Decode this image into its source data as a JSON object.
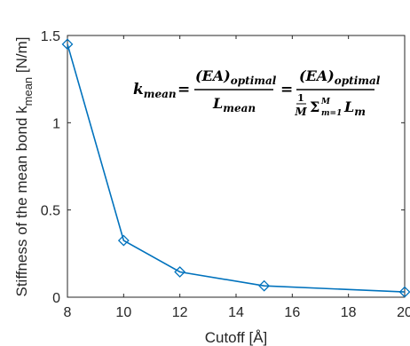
{
  "chart_data": {
    "type": "line",
    "x": [
      8,
      10,
      12,
      15,
      20
    ],
    "series": [
      {
        "values": [
          1.45,
          0.325,
          0.145,
          0.065,
          0.03
        ],
        "color": "#0072BD",
        "marker": "diamond"
      }
    ],
    "xlabel": "Cutoff [Å]",
    "ylabel_parts": {
      "main": "Stiffness of the mean bond k",
      "sub": "mean",
      "unit": " [N/m]"
    },
    "xlim": [
      8,
      20
    ],
    "ylim": [
      0,
      1.5
    ],
    "xticks": [
      8,
      10,
      12,
      14,
      16,
      18,
      20
    ],
    "yticks": [
      0,
      0.5,
      1,
      1.5
    ],
    "xtick_labels": [
      "8",
      "10",
      "12",
      "14",
      "16",
      "18",
      "20"
    ],
    "ytick_labels": [
      "0",
      "0.5",
      "1",
      "1.5"
    ],
    "grid": false,
    "annotation": {
      "lhs": "k",
      "lhs_sub": "mean",
      "eq": "=",
      "frac1_num": "(EA)",
      "frac1_num_sub": "optimal",
      "frac1_den": "L",
      "frac1_den_sub": "mean",
      "frac2_num": "(EA)",
      "frac2_num_sub": "optimal",
      "frac2_den_one": "1",
      "frac2_den_M": "M",
      "frac2_den_sum": "Σ",
      "frac2_den_sum_lower": "m=1",
      "frac2_den_sum_upper": "M",
      "frac2_den_L": "L",
      "frac2_den_L_sub": "m"
    }
  }
}
